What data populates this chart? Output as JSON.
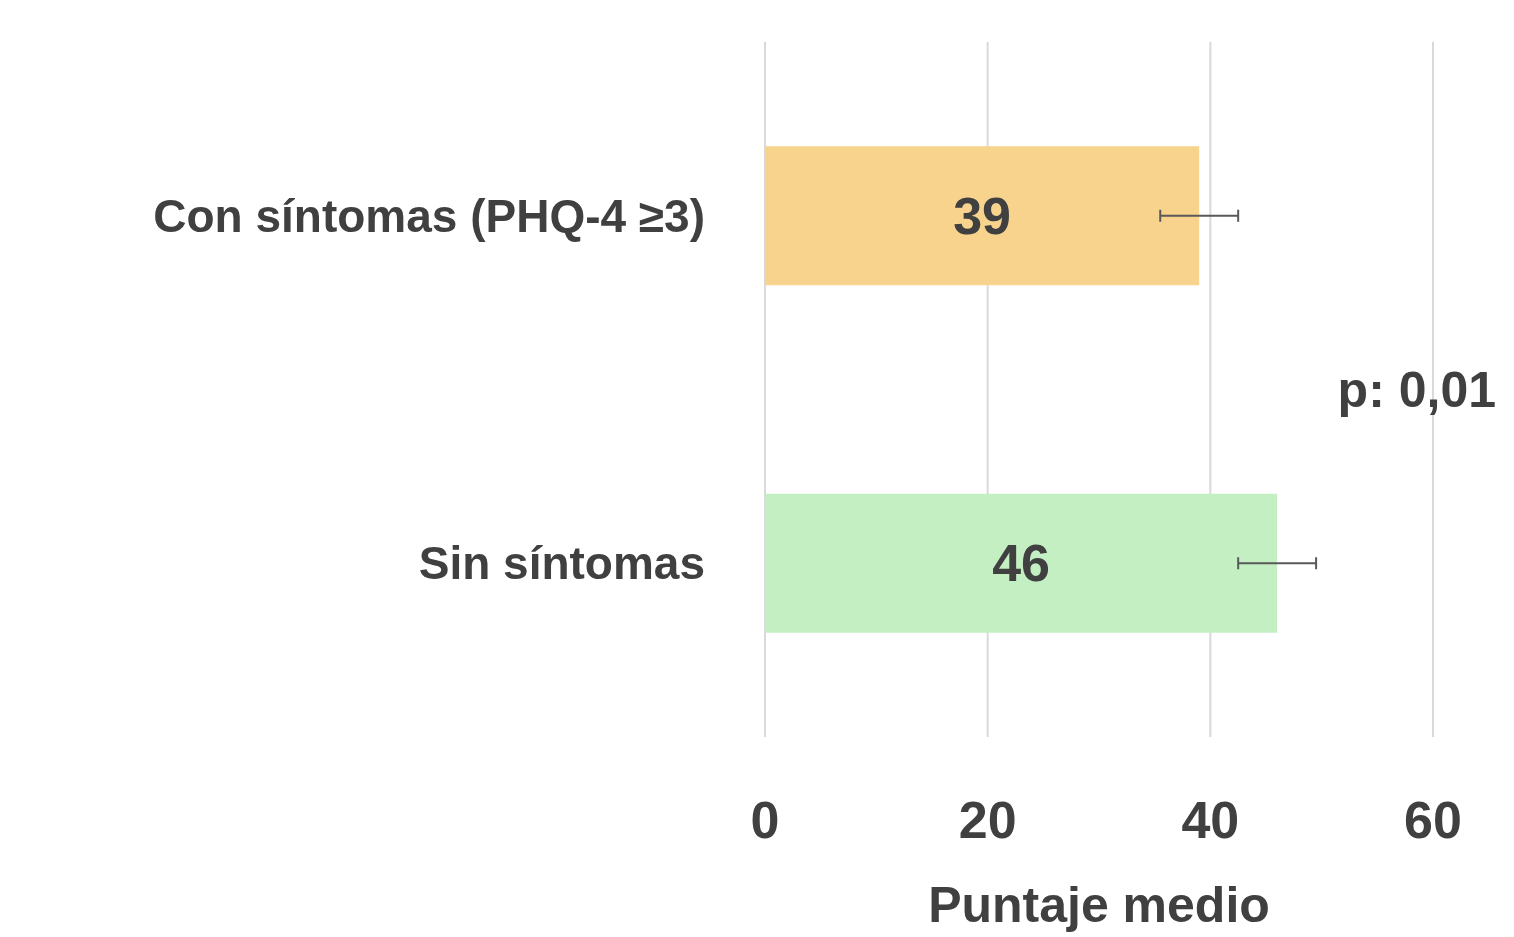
{
  "chart_data": {
    "type": "bar",
    "orientation": "horizontal",
    "categories": [
      "Con síntomas (PHQ-4 ≥3)",
      "Sin síntomas"
    ],
    "values": [
      39,
      46
    ],
    "colors": [
      "#f7d38e",
      "#c3efc3"
    ],
    "errors": [
      [
        35.5,
        42.5
      ],
      [
        42.5,
        49.5
      ]
    ],
    "xlim": [
      0,
      60
    ],
    "xticks": [
      0,
      20,
      40,
      60
    ],
    "xlabel": "Puntaje medio",
    "grid": "x",
    "data_labels": true,
    "annotations": [
      "p: 0,01"
    ]
  }
}
